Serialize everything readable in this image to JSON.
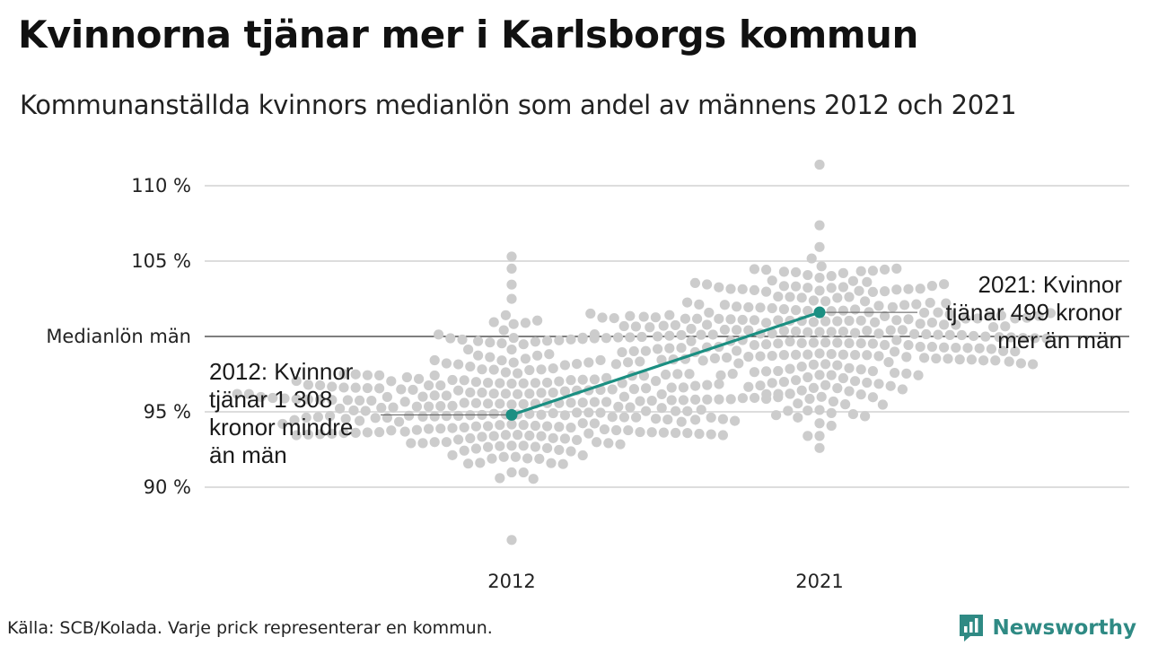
{
  "header": {
    "title": "Kvinnorna tjänar mer i Karlsborgs kommun",
    "subtitle": "Kommunanställda kvinnors medianlön som andel av männens 2012 och 2021"
  },
  "chart_data": {
    "type": "scatter",
    "subtype": "beeswarm-with-highlight-line",
    "categories": [
      "2012",
      "2021"
    ],
    "y_unit": "%",
    "ylim": [
      86,
      112
    ],
    "y_ticks": [
      {
        "value": 90,
        "label": "90 %"
      },
      {
        "value": 95,
        "label": "95 %"
      },
      {
        "value": 100,
        "label": "Medianlön män"
      },
      {
        "value": 105,
        "label": "105 %"
      },
      {
        "value": 110,
        "label": "110 %"
      }
    ],
    "grid": true,
    "reference_line": {
      "value": 100
    },
    "colors": {
      "dots": "#cccccc",
      "highlight": "#1b8f82",
      "grid": "#dddddd",
      "reference": "#333333"
    },
    "distributions": [
      {
        "category": "2012",
        "median": 95.5,
        "spread": 2.4,
        "min": 86.5,
        "max": 105.3,
        "count": 290
      },
      {
        "category": "2021",
        "median": 100.3,
        "spread": 2.3,
        "min": 92.6,
        "max": 111.4,
        "count": 290
      }
    ],
    "highlight": {
      "name": "Karlsborg",
      "points": [
        {
          "category": "2012",
          "value": 94.8
        },
        {
          "category": "2021",
          "value": 101.6
        }
      ]
    },
    "annotations": [
      {
        "category": "2012",
        "text": "2012: Kvinnor\ntjänar 1 308\nkronor mindre\nän män"
      },
      {
        "category": "2021",
        "text": "2021: Kvinnor\ntjänar 499 kronor\nmer än män"
      }
    ]
  },
  "footer": {
    "source": "Källa: SCB/Kolada. Varje prick representerar en kommun.",
    "logo_text": "Newsworthy",
    "logo_color": "#2f8a84"
  }
}
